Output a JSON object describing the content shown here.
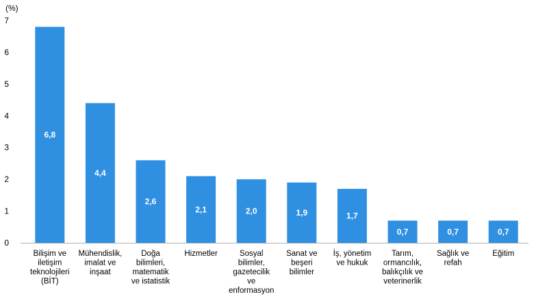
{
  "chart_data": {
    "type": "bar",
    "unit_label": "(%)",
    "categories": [
      [
        "Bilişim ve",
        "iletişim",
        "teknolojileri",
        "(BİT)"
      ],
      [
        "Mühendislik,",
        "imalat ve",
        "inşaat"
      ],
      [
        "Doğa",
        "bilimleri,",
        "matematik",
        "ve istatistik"
      ],
      [
        "Hizmetler"
      ],
      [
        "Sosyal",
        "bilimler,",
        "gazetecilik",
        "ve",
        "enformasyon"
      ],
      [
        "Sanat ve",
        "beşeri",
        "bilimler"
      ],
      [
        "İş, yönetim",
        "ve hukuk"
      ],
      [
        "Tarım,",
        "ormancılık,",
        "balıkçılık ve",
        "veterinerlik"
      ],
      [
        "Sağlık ve",
        "refah"
      ],
      [
        "Eğitim"
      ]
    ],
    "values": [
      6.8,
      4.4,
      2.6,
      2.1,
      2.0,
      1.9,
      1.7,
      0.7,
      0.7,
      0.7
    ],
    "value_labels": [
      "6,8",
      "4,4",
      "2,6",
      "2,1",
      "2,0",
      "1,9",
      "1,7",
      "0,7",
      "0,7",
      "0,7"
    ],
    "yticks": [
      "0",
      "1",
      "2",
      "3",
      "4",
      "5",
      "6",
      "7"
    ],
    "ylim": [
      0,
      7
    ],
    "bar_color": "#2f8fe0",
    "grid": false,
    "legend": false
  }
}
